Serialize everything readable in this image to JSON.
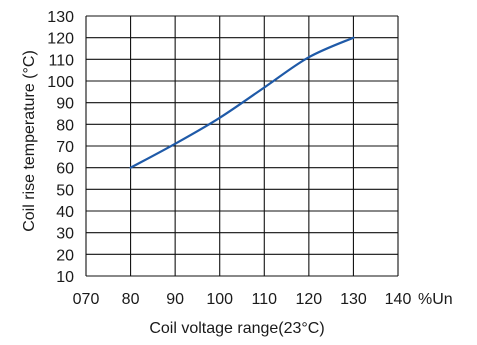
{
  "chart_data": {
    "type": "line",
    "title": "",
    "xlabel": "Coil voltage range(23°C)",
    "ylabel": "Coil rise temperature (°C)",
    "x_unit": "%Un",
    "xlim": [
      70,
      140
    ],
    "ylim": [
      10,
      130
    ],
    "x_ticks": [
      70,
      80,
      90,
      100,
      110,
      120,
      130,
      140
    ],
    "x_tick_labels": [
      "070",
      "80",
      "90",
      "100",
      "110",
      "120",
      "130",
      "140"
    ],
    "y_ticks": [
      10,
      20,
      30,
      40,
      50,
      60,
      70,
      80,
      90,
      100,
      110,
      120,
      130
    ],
    "y_tick_labels": [
      "10",
      "20",
      "30",
      "40",
      "50",
      "60",
      "70",
      "80",
      "90",
      "100",
      "110",
      "120",
      "130"
    ],
    "grid": true,
    "line_color": "#1f5aa8",
    "series": [
      {
        "x": [
          80,
          90,
          100,
          110,
          120,
          130
        ],
        "values": [
          60,
          71,
          83,
          97,
          111,
          120
        ]
      }
    ]
  }
}
